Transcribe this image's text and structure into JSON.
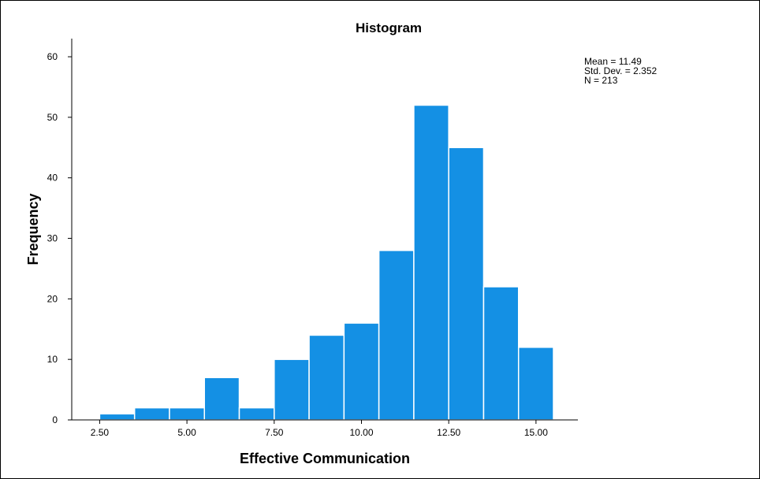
{
  "chart_data": {
    "type": "bar",
    "title": "Histogram",
    "xlabel": "Effective Communication",
    "ylabel": "Frequency",
    "bar_color": "#1490E4",
    "bar_edge_color": "#ffffff",
    "bin_width": 1,
    "bins": [
      {
        "start": 2.5,
        "end": 3.5,
        "count": 1
      },
      {
        "start": 3.5,
        "end": 4.5,
        "count": 2
      },
      {
        "start": 4.5,
        "end": 5.5,
        "count": 2
      },
      {
        "start": 5.5,
        "end": 6.5,
        "count": 7
      },
      {
        "start": 6.5,
        "end": 7.5,
        "count": 2
      },
      {
        "start": 7.5,
        "end": 8.5,
        "count": 10
      },
      {
        "start": 8.5,
        "end": 9.5,
        "count": 14
      },
      {
        "start": 9.5,
        "end": 10.5,
        "count": 16
      },
      {
        "start": 10.5,
        "end": 11.5,
        "count": 28
      },
      {
        "start": 11.5,
        "end": 12.5,
        "count": 52
      },
      {
        "start": 12.5,
        "end": 13.5,
        "count": 45
      },
      {
        "start": 13.5,
        "end": 14.5,
        "count": 22
      },
      {
        "start": 14.5,
        "end": 15.5,
        "count": 12
      }
    ],
    "xlim": [
      1.7,
      16.2
    ],
    "ylim": [
      0,
      63
    ],
    "x_ticks": [
      {
        "value": 2.5,
        "label": "2.50"
      },
      {
        "value": 5.0,
        "label": "5.00"
      },
      {
        "value": 7.5,
        "label": "7.50"
      },
      {
        "value": 10.0,
        "label": "10.00"
      },
      {
        "value": 12.5,
        "label": "12.50"
      },
      {
        "value": 15.0,
        "label": "15.00"
      }
    ],
    "y_ticks": [
      {
        "value": 0,
        "label": "0"
      },
      {
        "value": 10,
        "label": "10"
      },
      {
        "value": 20,
        "label": "20"
      },
      {
        "value": 30,
        "label": "30"
      },
      {
        "value": 40,
        "label": "40"
      },
      {
        "value": 50,
        "label": "50"
      },
      {
        "value": 60,
        "label": "60"
      }
    ],
    "grid": false,
    "legend": "none",
    "stats_placement": "top-right",
    "stats": {
      "mean": "Mean = 11.49",
      "std_dev": "Std. Dev. = 2.352",
      "n": "N = 213"
    }
  }
}
